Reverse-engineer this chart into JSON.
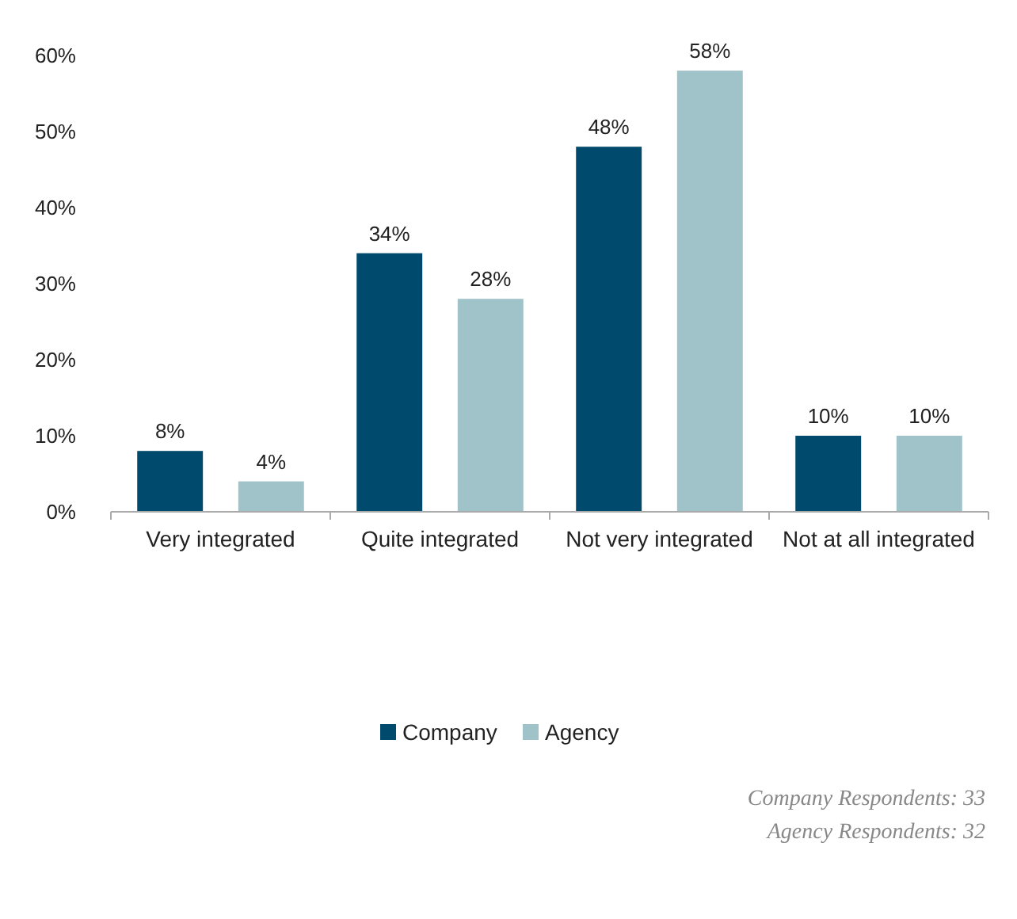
{
  "chart_data": {
    "type": "bar",
    "categories": [
      "Very integrated",
      "Quite integrated",
      "Not very integrated",
      "Not at all integrated"
    ],
    "series": [
      {
        "name": "Company",
        "color": "#004a6e",
        "values": [
          8,
          34,
          48,
          10
        ],
        "value_labels": [
          "8%",
          "34%",
          "48%",
          "10%"
        ]
      },
      {
        "name": "Agency",
        "color": "#9fc3c9",
        "values": [
          4,
          28,
          58,
          10
        ],
        "value_labels": [
          "4%",
          "28%",
          "58%",
          "10%"
        ]
      }
    ],
    "ylim": [
      0,
      60
    ],
    "yticks": [
      {
        "value": 0,
        "label": "0%"
      },
      {
        "value": 10,
        "label": "10%"
      },
      {
        "value": 20,
        "label": "20%"
      },
      {
        "value": 30,
        "label": "30%"
      },
      {
        "value": 40,
        "label": "40%"
      },
      {
        "value": 50,
        "label": "50%"
      },
      {
        "value": 60,
        "label": "60%"
      }
    ],
    "grid": false,
    "legend": "bottom",
    "annotations": [
      "Company Respondents: 33",
      "Agency Respondents: 32"
    ]
  }
}
